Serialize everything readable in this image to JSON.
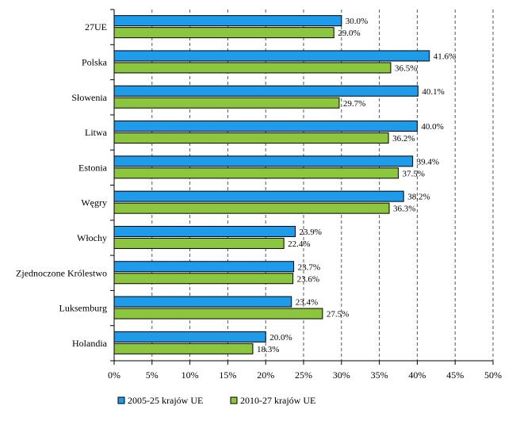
{
  "chart_data": {
    "type": "bar",
    "orientation": "horizontal",
    "categories": [
      "27UE",
      "Polska",
      "Słowenia",
      "Litwa",
      "Estonia",
      "Węgry",
      "Włochy",
      "Zjednoczone Królestwo",
      "Luksemburg",
      "Holandia"
    ],
    "category_labels": [
      "27UE",
      "Polska",
      "Słowenia",
      "Litwa",
      "Estonia",
      "Węgry",
      "Włochy",
      "Zjednoczone Królestwo",
      "Luksemburg",
      "Holandia"
    ],
    "series": [
      {
        "name": "2005-25 krajów UE",
        "color": "#1e9be9",
        "values": [
          30.0,
          41.6,
          40.1,
          40.0,
          39.4,
          38.2,
          23.9,
          23.7,
          23.4,
          20.0
        ],
        "labels": [
          "30.0%",
          "41.6%",
          "40.1%",
          "40.0%",
          "39.4%",
          "38.2%",
          "23.9%",
          "23.7%",
          "23.4%",
          "20.0%"
        ]
      },
      {
        "name": "2010-27 krajów UE",
        "color": "#8cc63f",
        "values": [
          29.0,
          36.5,
          29.7,
          36.2,
          37.5,
          36.3,
          22.4,
          23.6,
          27.5,
          18.3
        ],
        "labels": [
          "29.0%",
          "36.5%",
          "29.7%",
          "36.2%",
          "37.5%",
          "36.3%",
          "22.4%",
          "23.6%",
          "27.5%",
          "18.3%"
        ]
      }
    ],
    "xlim": [
      0,
      50
    ],
    "x_ticks": [
      "0%",
      "5%",
      "10%",
      "15%",
      "20%",
      "25%",
      "30%",
      "35%",
      "40%",
      "45%",
      "50%"
    ],
    "grid": "vertical dashed",
    "legend_position": "bottom-left",
    "legend": [
      "2005-25 krajów UE",
      "2010-27 krajów UE"
    ]
  }
}
